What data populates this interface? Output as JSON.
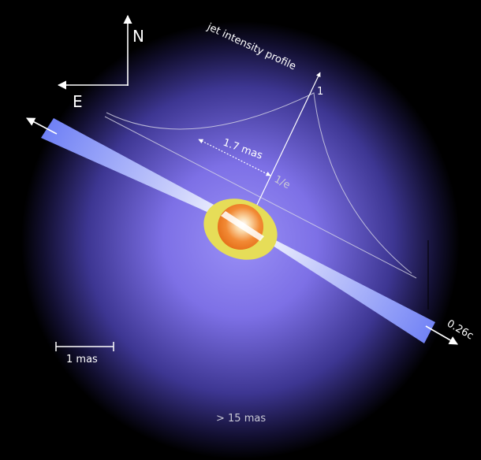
{
  "compass": {
    "north_label": "N",
    "east_label": "E"
  },
  "jet_profile": {
    "title": "jet intensity profile",
    "peak_label": "1",
    "width_label": "1.7 mas",
    "efold_label": "1/e"
  },
  "jet": {
    "speed_label": "0.26c"
  },
  "scale_bar": {
    "label": "1 mas"
  },
  "halo": {
    "size_label": "> 15 mas"
  },
  "colors": {
    "background": "#000000",
    "halo_inner": "#8a7ef0",
    "halo_outer": "#000000",
    "jet": "#7f8ef5",
    "disk": "#e3dc5a",
    "core": "#f07a24",
    "line": "#ffffff"
  }
}
